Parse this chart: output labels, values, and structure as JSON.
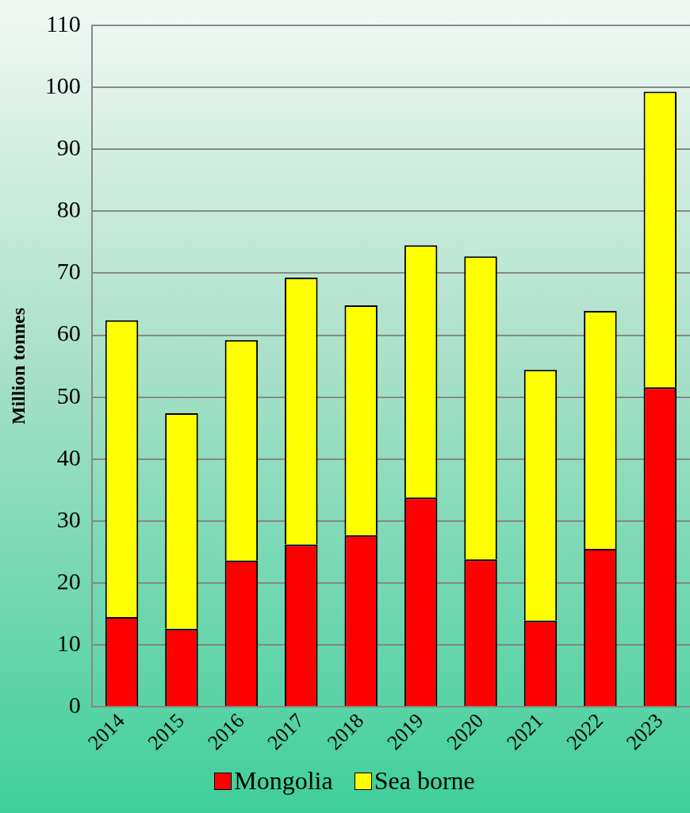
{
  "chart_data": {
    "type": "bar",
    "ylabel": "Million tonnes",
    "stacked": true,
    "legend": "bottom",
    "grid": "y",
    "categories": [
      "2014",
      "2015",
      "2016",
      "2017",
      "2018",
      "2019",
      "2020",
      "2021",
      "2022",
      "2023"
    ],
    "series": [
      {
        "name": "Mongolia",
        "color": "#ff0000",
        "values": [
          14.5,
          12.6,
          23.6,
          26.2,
          27.7,
          33.8,
          23.8,
          13.9,
          25.5,
          51.6
        ]
      },
      {
        "name": "Sea borne",
        "color": "#ffff00",
        "values": [
          47.9,
          34.8,
          35.6,
          43.1,
          37.1,
          40.7,
          48.9,
          40.5,
          38.4,
          47.7
        ]
      }
    ],
    "ylim": [
      0,
      110
    ],
    "yticks": [
      0,
      10,
      20,
      30,
      40,
      50,
      60,
      70,
      80,
      90,
      100,
      110
    ]
  }
}
